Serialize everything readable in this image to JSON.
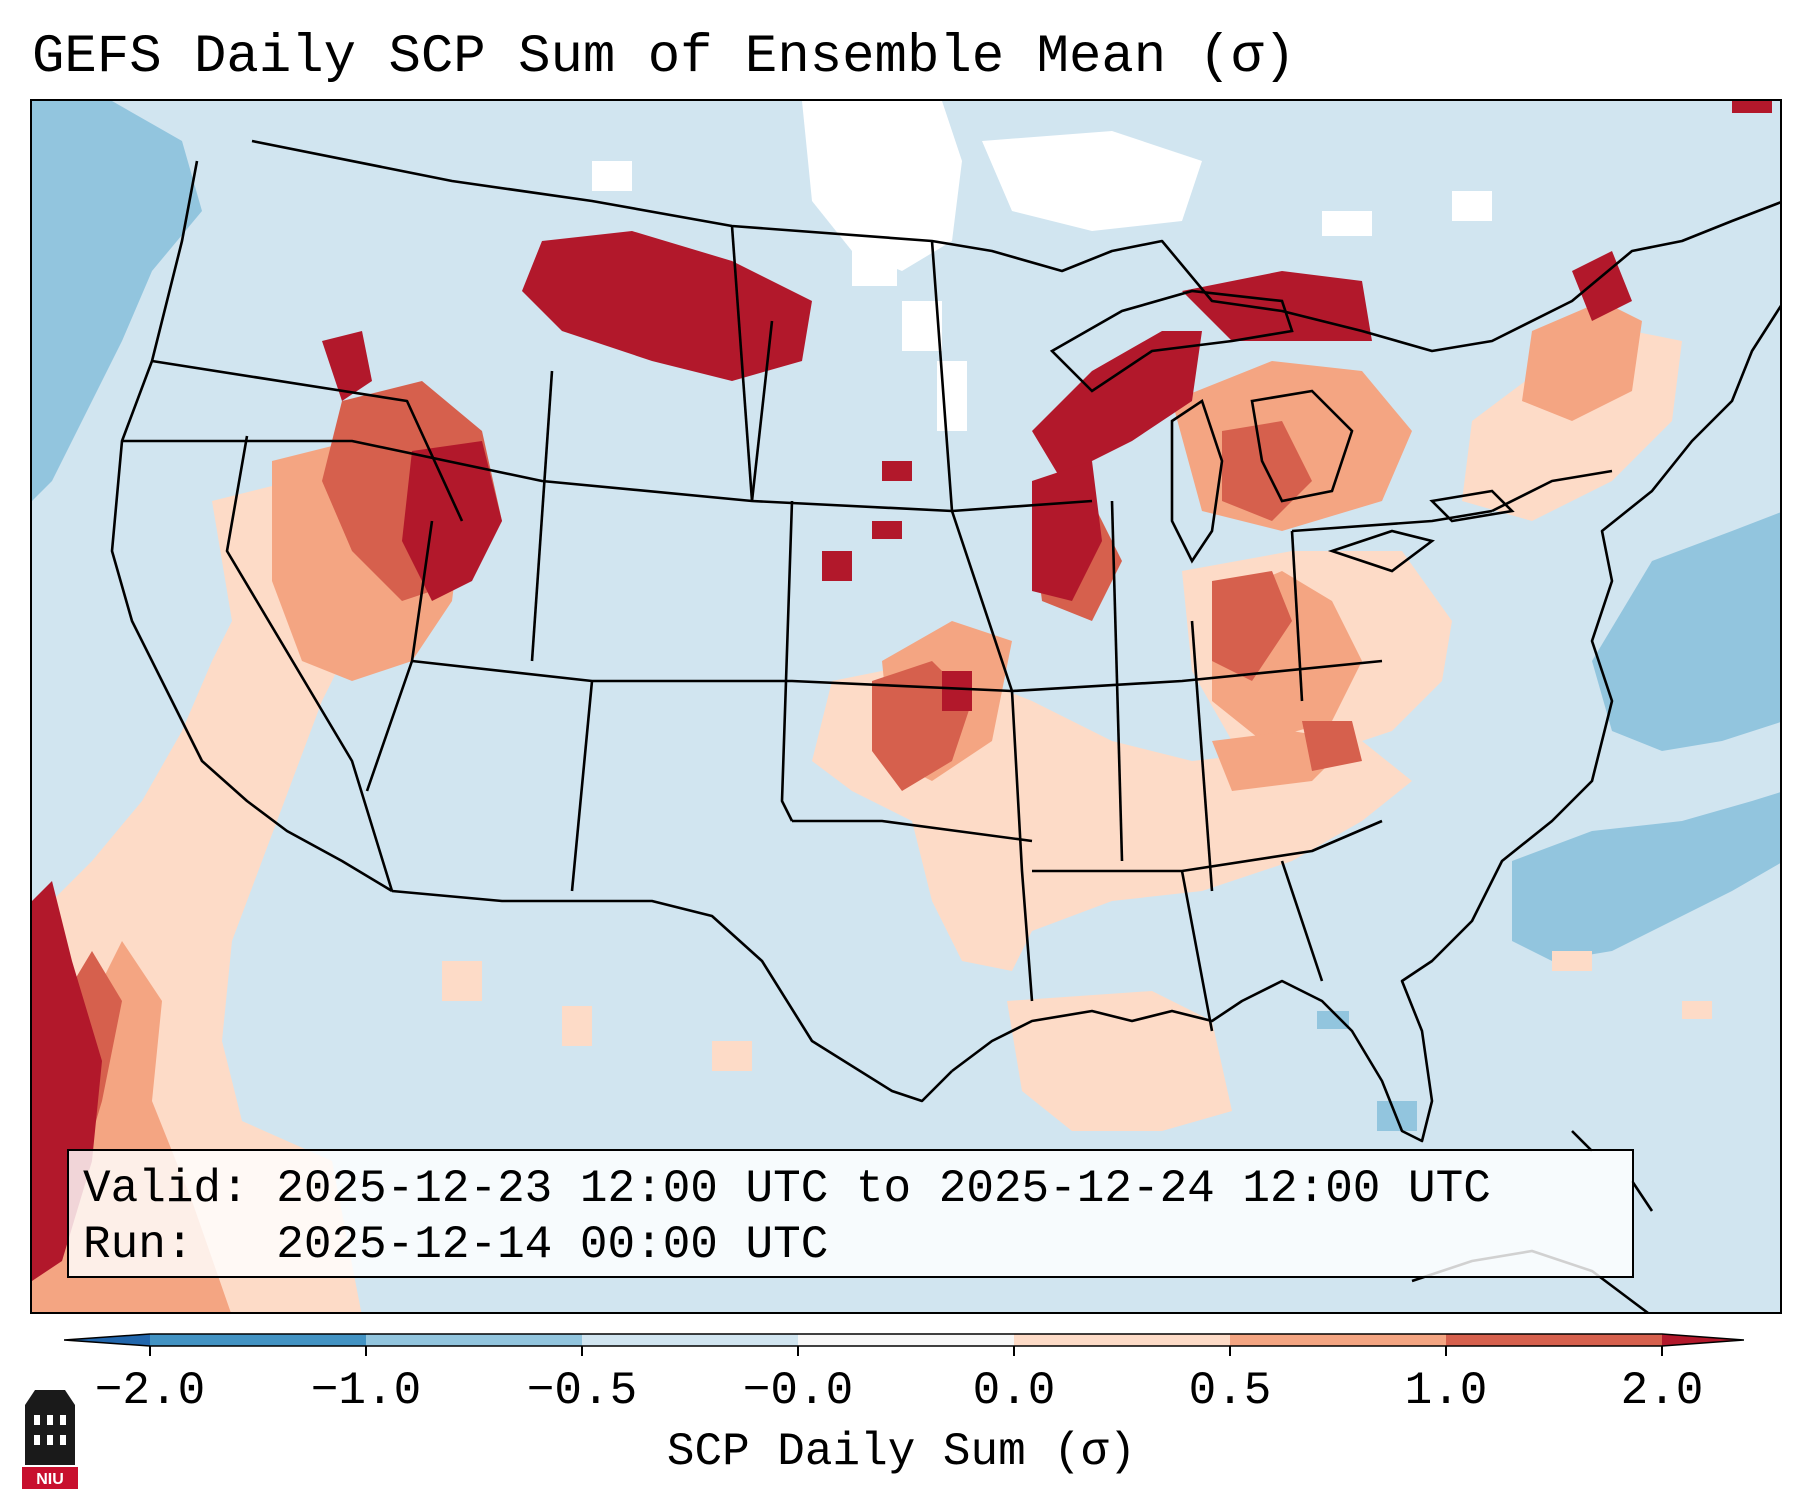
{
  "title": "GEFS Daily SCP Sum of Ensemble Mean (σ)",
  "info": {
    "valid_line": "Valid: 2025-12-23 12:00 UTC to 2025-12-24 12:00 UTC",
    "run_line": "Run:   2025-12-14 00:00 UTC"
  },
  "colorbar": {
    "label": "SCP Daily Sum (σ)",
    "ticks": [
      "−2.0",
      "−1.0",
      "−0.5",
      "−0.0",
      "0.0",
      "0.5",
      "1.0",
      "2.0"
    ],
    "colors": [
      "#4393c3",
      "#92c5de",
      "#d1e5f0",
      "#f7f7f7",
      "#fddbc7",
      "#f4a582",
      "#d6604d"
    ],
    "extend_low_color": "#2166ac",
    "extend_high_color": "#b2182b"
  },
  "map": {
    "background_color": "#d1e5f0",
    "levels": {
      "very_high": "#b2182b",
      "high": "#d6604d",
      "moderate": "#f4a582",
      "low": "#fddbc7",
      "neutral": "#ffffff",
      "negative": "#92c5de"
    }
  },
  "logo": {
    "text": "NIU"
  }
}
